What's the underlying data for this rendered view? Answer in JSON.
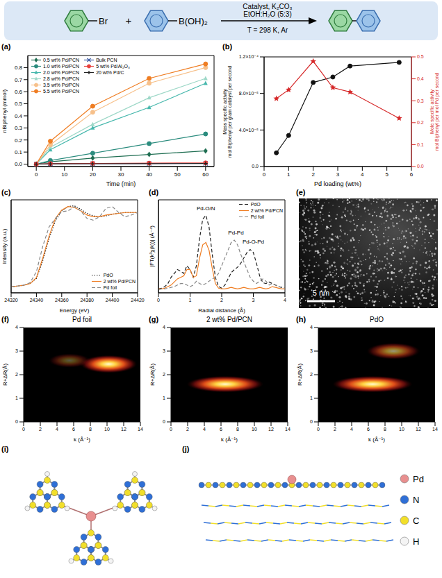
{
  "scheme": {
    "reactant_1_substituent": "Br",
    "plus": "+",
    "reactant_2_substituent": "B(OH)₂",
    "conditions_above": [
      "Catalyst, K₂CO₃",
      "EtOH:H₂O (5:3)"
    ],
    "conditions_below": "T = 298 K, Ar"
  },
  "chart_data": [
    {
      "panel": "(a)",
      "type": "line",
      "xlabel": "Time (min)",
      "ylabel": "nBiphenyl (mmol)",
      "x": [
        0,
        5,
        20,
        40,
        60
      ],
      "xlim": [
        -3,
        63
      ],
      "xticks": [
        0,
        10,
        20,
        30,
        40,
        50,
        60
      ],
      "ylim": [
        -0.02,
        0.9
      ],
      "yticks": [
        {
          "value": 0,
          "label": "0.0"
        },
        0.1,
        0.2,
        0.3,
        0.4,
        0.5,
        0.6,
        0.7,
        0.8
      ],
      "legend": "upper left",
      "series": [
        {
          "name": "0.5 wt% Pd/PCN",
          "color": "#1f6e52",
          "marker": "diamond",
          "values": [
            0,
            0.02,
            0.05,
            0.08,
            0.11
          ]
        },
        {
          "name": "1.0 wt% Pd/PCN",
          "color": "#2b8c7e",
          "marker": "circle",
          "values": [
            0,
            0.03,
            0.09,
            0.17,
            0.25
          ]
        },
        {
          "name": "2.0 wt% Pd/PCN",
          "color": "#47b8ad",
          "marker": "triangle",
          "values": [
            0,
            0.12,
            0.3,
            0.47,
            0.67
          ]
        },
        {
          "name": "2.8 wt% Pd/PCN",
          "color": "#9ed8c8",
          "marker": "triangle",
          "values": [
            0,
            0.14,
            0.33,
            0.55,
            0.71
          ]
        },
        {
          "name": "3.5 wt% Pd/PCN",
          "color": "#f7c08a",
          "marker": "circle",
          "values": [
            0,
            0.16,
            0.43,
            0.67,
            0.8
          ]
        },
        {
          "name": "5.5 wt% Pd/PCN",
          "color": "#ef7d22",
          "marker": "circle",
          "values": [
            0,
            0.19,
            0.48,
            0.71,
            0.83
          ]
        },
        {
          "name": "Bulk PCN",
          "color": "#3c5aa6",
          "marker": "x",
          "values": [
            0,
            0.003,
            0.004,
            0.005,
            0.006
          ]
        },
        {
          "name": "5 wt% Pd/Al₂O₃",
          "color": "#e8403c",
          "marker": "circle",
          "values": [
            0,
            0.004,
            0.006,
            0.008,
            0.01
          ]
        },
        {
          "name": "20 wt% Pd/C",
          "color": "#222222",
          "marker": "plus",
          "values": [
            0,
            0.002,
            0.003,
            0.004,
            0.005
          ]
        }
      ]
    },
    {
      "panel": "(b)",
      "type": "line",
      "xlabel": "Pd loading (wt%)",
      "ylabel": [
        "Mass specific activity",
        "mol Biphenyl per gram catalyst per second"
      ],
      "y2label": [
        "Mole specific activity",
        "mol Biphenyl per mol Pd per second"
      ],
      "x": [
        0.5,
        1,
        2,
        2.8,
        3.5,
        5.5
      ],
      "xlim": [
        0,
        6
      ],
      "xticks": [
        0,
        1,
        2,
        3,
        4,
        5,
        6
      ],
      "ylim": [
        0,
        0.00012
      ],
      "yticks": [
        {
          "value": 0,
          "label": "0.0"
        },
        {
          "value": 4e-05,
          "label": "4.0×10⁻⁵"
        },
        {
          "value": 8e-05,
          "label": "8.0×10⁻⁵"
        },
        {
          "value": 0.00012,
          "label": "1.2×10⁻⁴"
        }
      ],
      "y2lim": [
        0,
        0.5
      ],
      "y2ticks": [
        {
          "value": 0,
          "label": "0.0"
        },
        0.1,
        0.2,
        0.3,
        0.4,
        0.5
      ],
      "series": [
        {
          "color": "#111111",
          "marker": "circle",
          "values": [
            1.5e-05,
            3.4e-05,
            9.2e-05,
            9.8e-05,
            0.00011,
            0.000114
          ]
        },
        {
          "color": "#d62728",
          "marker": "star",
          "axis": "y2",
          "values": [
            0.31,
            0.35,
            0.48,
            0.36,
            0.34,
            0.22
          ]
        }
      ]
    },
    {
      "panel": "(c)",
      "type": "line",
      "xlabel": "Energy (eV)",
      "ylabel": "Intensity (a.u.)",
      "tick_labels": "x",
      "x": [
        24320,
        24325,
        24330,
        24335,
        24340,
        24345,
        24350,
        24355,
        24360,
        24365,
        24370,
        24375,
        24380,
        24385,
        24390,
        24395,
        24400,
        24405,
        24410,
        24415,
        24420
      ],
      "xlim": [
        24320,
        24420
      ],
      "xticks": [
        24320,
        24340,
        24360,
        24380,
        24400,
        24420
      ],
      "ylim": [
        0,
        1.1
      ],
      "legend": "lower right",
      "series": [
        {
          "name": "PdO",
          "color": "#222222",
          "line_style": "dotted",
          "values": [
            0.07,
            0.08,
            0.09,
            0.11,
            0.17,
            0.38,
            0.64,
            0.85,
            0.97,
            1.02,
            1.03,
            0.99,
            0.94,
            0.91,
            0.9,
            0.91,
            0.93,
            0.94,
            0.95,
            0.95,
            0.95
          ]
        },
        {
          "name": "2 wt% Pd/PCN",
          "color": "#ef7d22",
          "line_style": "solid",
          "values": [
            0.07,
            0.08,
            0.09,
            0.11,
            0.18,
            0.41,
            0.67,
            0.88,
            0.98,
            1.02,
            1.01,
            0.97,
            0.92,
            0.9,
            0.9,
            0.92,
            0.93,
            0.94,
            0.95,
            0.95,
            0.95
          ]
        },
        {
          "name": "Pd foil",
          "color": "#888888",
          "line_style": "dashed",
          "values": [
            0.07,
            0.08,
            0.09,
            0.12,
            0.25,
            0.55,
            0.78,
            0.88,
            0.96,
            0.97,
            1.02,
            0.97,
            0.88,
            0.86,
            0.9,
            1.0,
            1.02,
            0.95,
            0.9,
            0.92,
            0.95
          ]
        }
      ]
    },
    {
      "panel": "(d)",
      "type": "line",
      "xlabel": "Radial distance (Å)",
      "ylabel": "|FT(k³χ(k))| (Å⁻⁴)",
      "tick_labels": "x",
      "x": [
        0,
        0.1,
        0.2,
        0.3,
        0.4,
        0.5,
        0.6,
        0.7,
        0.8,
        0.9,
        1,
        1.1,
        1.2,
        1.3,
        1.4,
        1.5,
        1.6,
        1.7,
        1.8,
        1.9,
        2,
        2.1,
        2.2,
        2.3,
        2.4,
        2.5,
        2.6,
        2.7,
        2.8,
        2.9,
        3,
        3.1,
        3.2,
        3.3,
        3.4,
        3.5,
        3.6,
        3.7,
        3.8,
        3.9,
        4
      ],
      "xlim": [
        0,
        4
      ],
      "xticks": [
        0,
        1,
        2,
        3,
        4
      ],
      "ylim": [
        0,
        1.2
      ],
      "legend": "upper right",
      "annotations": [
        {
          "text": "Pd-O/N",
          "x": 1.5,
          "y": 1.09
        },
        {
          "text": "Pd-Pd",
          "x": 2.45,
          "y": 0.78
        },
        {
          "text": "Pd-O-Pd",
          "x": 3.0,
          "y": 0.66
        }
      ],
      "series": [
        {
          "name": "PdO",
          "color": "#222222",
          "line_style": "dashed",
          "values": [
            0.05,
            0.06,
            0.08,
            0.12,
            0.2,
            0.25,
            0.3,
            0.28,
            0.25,
            0.35,
            0.3,
            0.2,
            0.35,
            0.7,
            0.95,
            1.0,
            0.85,
            0.5,
            0.2,
            0.08,
            0.06,
            0.1,
            0.18,
            0.26,
            0.3,
            0.33,
            0.38,
            0.45,
            0.52,
            0.56,
            0.52,
            0.38,
            0.22,
            0.13,
            0.12,
            0.14,
            0.12,
            0.1,
            0.08,
            0.07,
            0.06
          ]
        },
        {
          "name": "2 wt% Pd/PCN",
          "color": "#ef7d22",
          "line_style": "solid",
          "values": [
            0.05,
            0.05,
            0.06,
            0.08,
            0.1,
            0.14,
            0.18,
            0.2,
            0.22,
            0.3,
            0.3,
            0.2,
            0.22,
            0.45,
            0.62,
            0.65,
            0.55,
            0.32,
            0.12,
            0.06,
            0.05,
            0.05,
            0.06,
            0.07,
            0.06,
            0.05,
            0.06,
            0.07,
            0.06,
            0.05,
            0.05,
            0.06,
            0.07,
            0.06,
            0.05,
            0.06,
            0.08,
            0.07,
            0.06,
            0.05,
            0.05
          ]
        },
        {
          "name": "Pd foil",
          "color": "#888888",
          "line_style": "dashed",
          "values": [
            0.04,
            0.05,
            0.05,
            0.06,
            0.07,
            0.08,
            0.1,
            0.12,
            0.12,
            0.1,
            0.08,
            0.1,
            0.15,
            0.12,
            0.1,
            0.12,
            0.15,
            0.18,
            0.2,
            0.25,
            0.35,
            0.45,
            0.55,
            0.65,
            0.68,
            0.62,
            0.5,
            0.4,
            0.3,
            0.2,
            0.15,
            0.12,
            0.15,
            0.18,
            0.15,
            0.1,
            0.12,
            0.1,
            0.08,
            0.07,
            0.06
          ]
        }
      ]
    },
    {
      "panel": "(f)",
      "type": "heatmap",
      "title": "Pd foil",
      "xlabel": "k (Å⁻¹)",
      "ylabel": "R+ΔR(Å)",
      "xlim": [
        0,
        14
      ],
      "xticks": [
        0,
        2,
        4,
        6,
        8,
        10,
        12,
        14
      ],
      "ylim": [
        0,
        4
      ],
      "yticks": [
        0,
        1,
        2,
        3,
        4
      ],
      "maxima": [
        {
          "k": 10.2,
          "R": 2.45,
          "dk": 3.4,
          "dR": 0.38,
          "intensity": 1
        },
        {
          "k": 5.5,
          "R": 2.6,
          "dk": 2.5,
          "dR": 0.3,
          "intensity": 0.35
        }
      ]
    },
    {
      "panel": "(g)",
      "type": "heatmap",
      "title": "2 wt% Pd/PCN",
      "xlabel": "k (Å⁻¹)",
      "ylabel": "R+ΔR(Å)",
      "xlim": [
        0,
        14
      ],
      "xticks": [
        0,
        2,
        4,
        6,
        8,
        10,
        12,
        14
      ],
      "ylim": [
        0,
        4
      ],
      "yticks": [
        0,
        1,
        2,
        3,
        4
      ],
      "maxima": [
        {
          "k": 6.5,
          "R": 1.6,
          "dk": 4.6,
          "dR": 0.35,
          "intensity": 1
        }
      ]
    },
    {
      "panel": "(h)",
      "type": "heatmap",
      "title": "PdO",
      "xlabel": "k (Å⁻¹)",
      "ylabel": "R+ΔR(Å)",
      "xlim": [
        0,
        14
      ],
      "xticks": [
        0,
        2,
        4,
        6,
        8,
        10,
        12,
        14
      ],
      "ylim": [
        0,
        4
      ],
      "yticks": [
        0,
        1,
        2,
        3,
        4
      ],
      "maxima": [
        {
          "k": 6.5,
          "R": 1.6,
          "dk": 4.8,
          "dR": 0.35,
          "intensity": 1
        },
        {
          "k": 9,
          "R": 3.0,
          "dk": 3.2,
          "dR": 0.35,
          "intensity": 0.6
        }
      ]
    }
  ],
  "panel_e": {
    "panel": "(e)",
    "scale_bar": "5 nm"
  },
  "panel_i": {
    "panel": "(i)"
  },
  "panel_j": {
    "panel": "(j)",
    "atoms": [
      {
        "label": "Pd",
        "color": "#e88f8f"
      },
      {
        "label": "N",
        "color": "#2f6fd6"
      },
      {
        "label": "C",
        "color": "#f2df2a"
      },
      {
        "label": "H",
        "color": "#f4f4f4"
      }
    ]
  }
}
